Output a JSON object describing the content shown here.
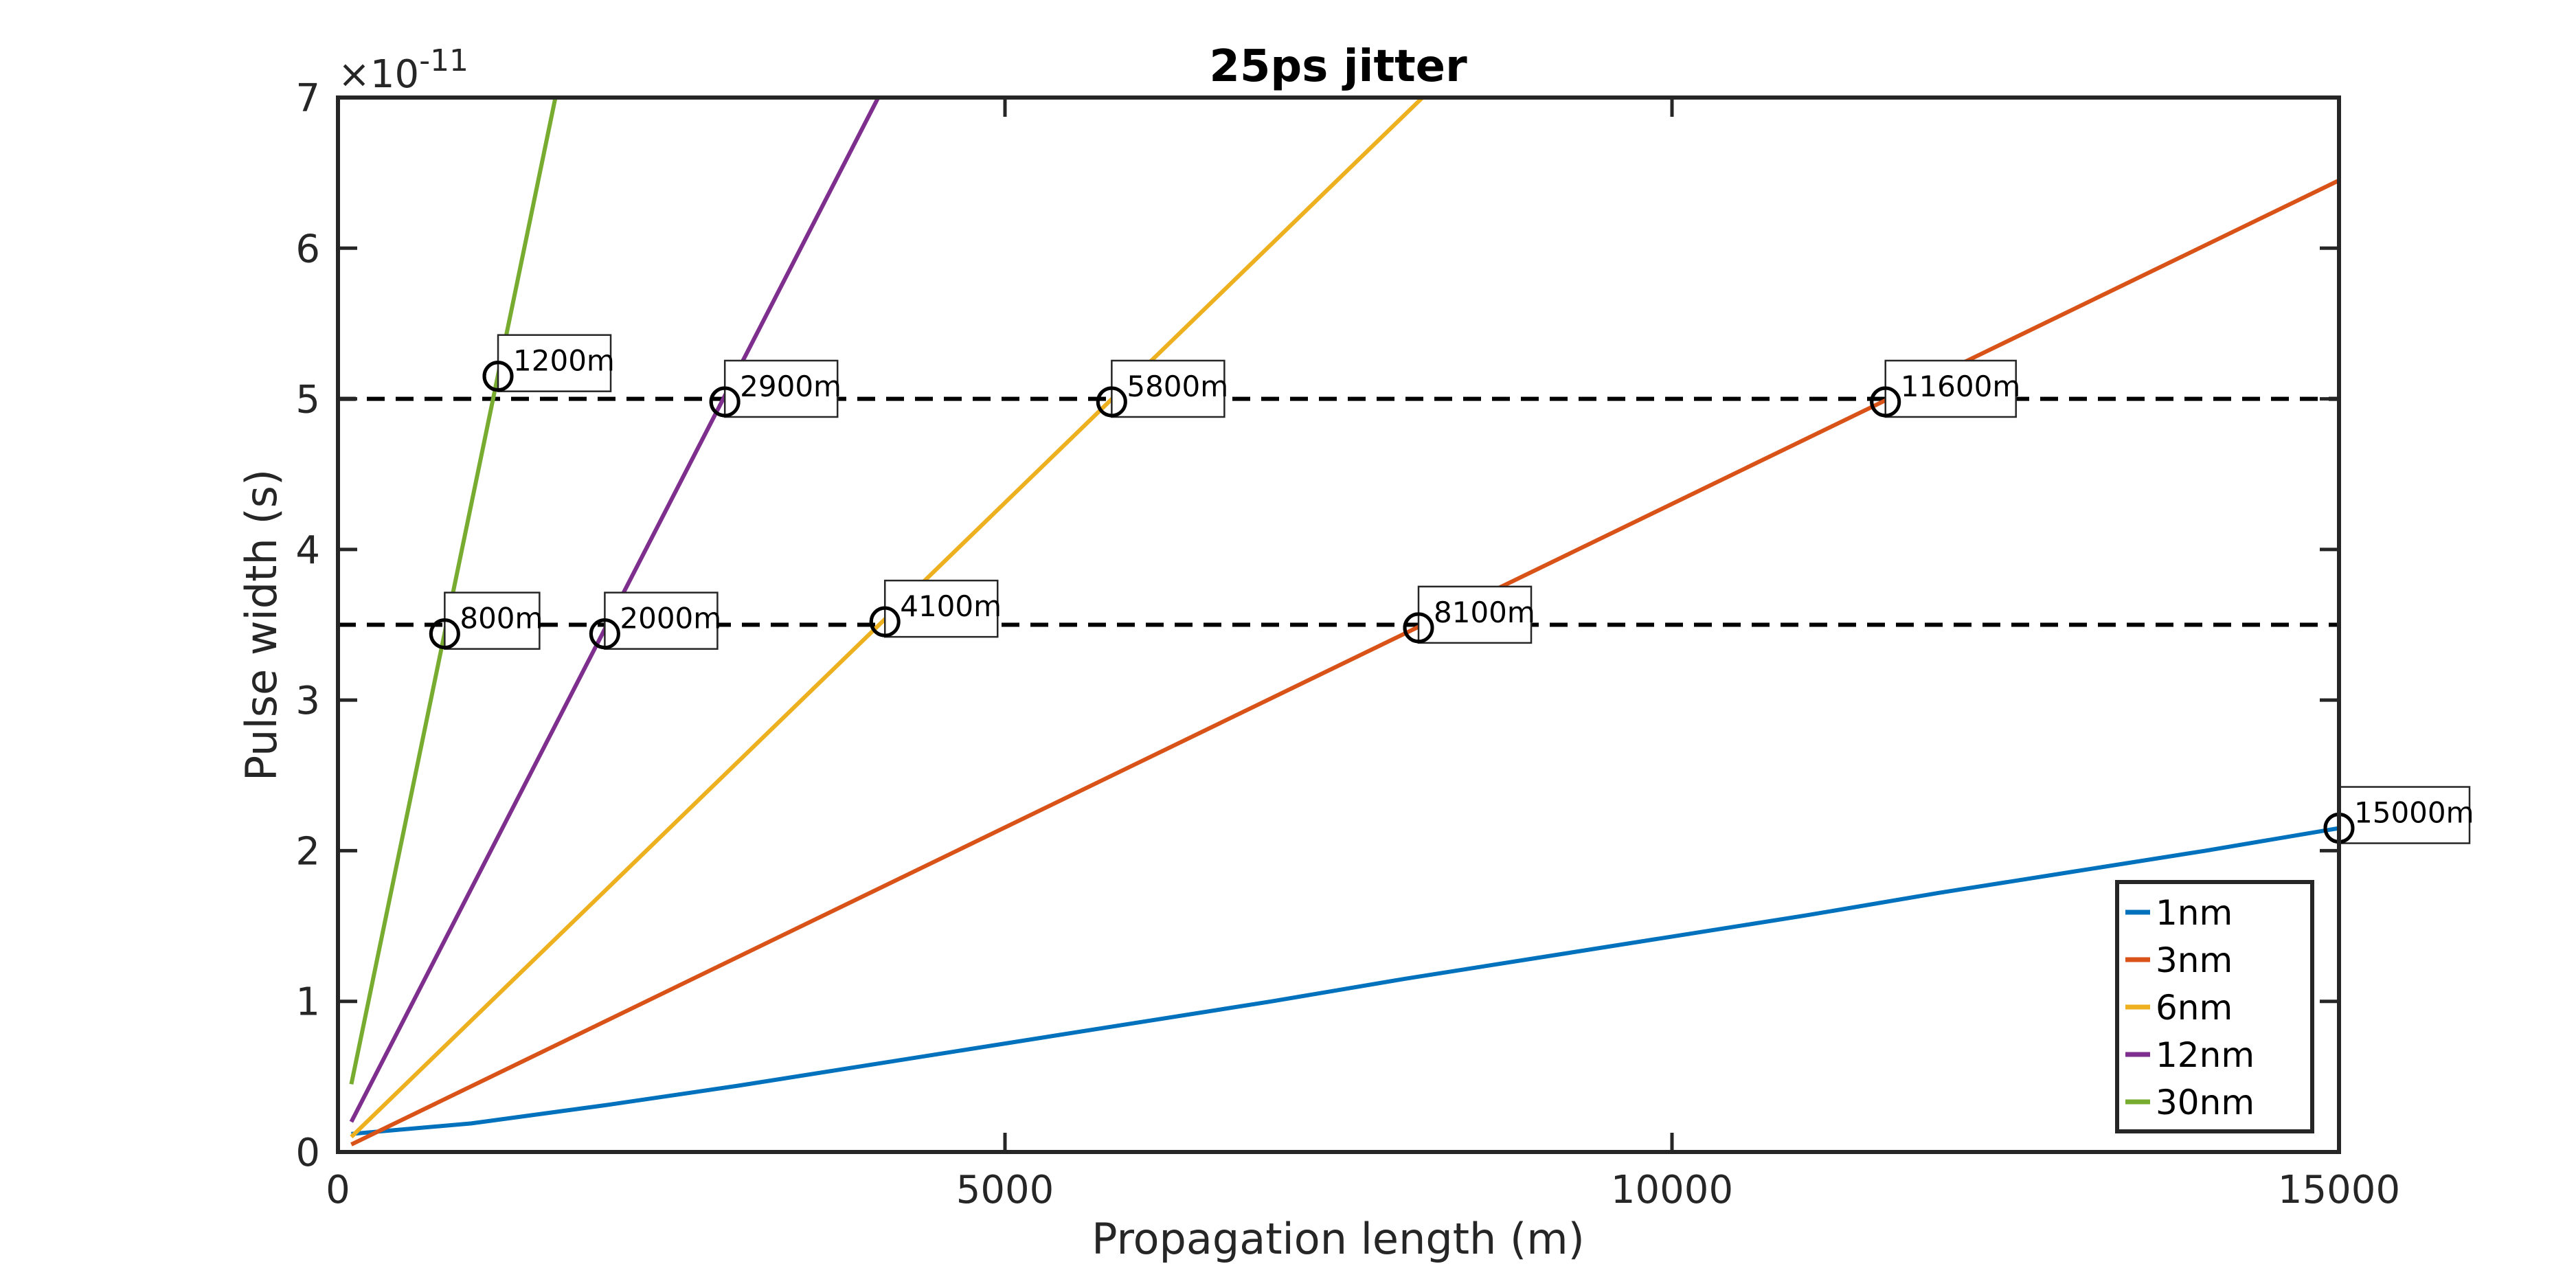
{
  "chart_data": {
    "type": "line",
    "title": "25ps jitter",
    "xlabel": "Propagation length (m)",
    "ylabel": "Pulse width (s)",
    "exponent_label": "×10",
    "exponent_power": "-11",
    "xlim": [
      0,
      15000
    ],
    "ylim": [
      0,
      7
    ],
    "xticks": [
      0,
      5000,
      10000,
      15000
    ],
    "xtick_labels": [
      "0",
      "5000",
      "10000",
      "15000"
    ],
    "yticks": [
      0,
      1,
      2,
      3,
      4,
      5,
      6,
      7
    ],
    "ytick_labels": [
      "0",
      "1",
      "2",
      "3",
      "4",
      "5",
      "6",
      "7"
    ],
    "grid": false,
    "legend_position": "bottom-right",
    "series": [
      {
        "name": "1nm",
        "color": "#0072BD",
        "x": [
          100,
          1000,
          2000,
          3000,
          4000,
          5000,
          6000,
          7000,
          8000,
          9000,
          10000,
          11000,
          12000,
          13000,
          14000,
          15000
        ],
        "y": [
          0.12,
          0.19,
          0.31,
          0.44,
          0.58,
          0.72,
          0.86,
          1.0,
          1.15,
          1.29,
          1.43,
          1.57,
          1.72,
          1.86,
          2.0,
          2.15
        ]
      },
      {
        "name": "3nm",
        "color": "#D95319",
        "x": [
          100,
          15000
        ],
        "y": [
          0.05,
          6.45
        ]
      },
      {
        "name": "6nm",
        "color": "#EDB120",
        "x": [
          100,
          8130
        ],
        "y": [
          0.1,
          7.0
        ]
      },
      {
        "name": "12nm",
        "color": "#7E2F8E",
        "x": [
          100,
          4050
        ],
        "y": [
          0.2,
          7.0
        ]
      },
      {
        "name": "30nm",
        "color": "#77AC30",
        "x": [
          100,
          1630
        ],
        "y": [
          0.45,
          7.0
        ]
      }
    ],
    "reference_lines": [
      {
        "y": 5.0,
        "style": "dashed",
        "color": "#000000"
      },
      {
        "y": 3.5,
        "style": "dashed",
        "color": "#000000"
      }
    ],
    "annotations": [
      {
        "x": 1200,
        "y": 5.15,
        "label": "1200m"
      },
      {
        "x": 2900,
        "y": 4.98,
        "label": "2900m"
      },
      {
        "x": 5800,
        "y": 4.98,
        "label": "5800m"
      },
      {
        "x": 11600,
        "y": 4.98,
        "label": "11600m"
      },
      {
        "x": 800,
        "y": 3.44,
        "label": "800m"
      },
      {
        "x": 2000,
        "y": 3.44,
        "label": "2000m"
      },
      {
        "x": 4100,
        "y": 3.52,
        "label": "4100m"
      },
      {
        "x": 8100,
        "y": 3.48,
        "label": "8100m"
      },
      {
        "x": 15000,
        "y": 2.15,
        "label": "15000m"
      }
    ]
  }
}
